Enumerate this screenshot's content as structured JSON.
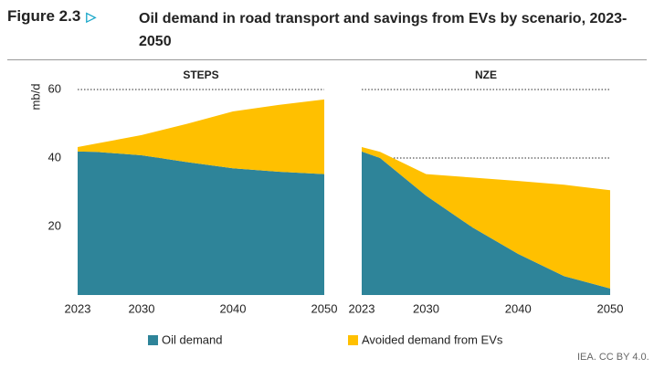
{
  "figure_label": "Figure 2.3",
  "title": "Oil demand in road transport and savings from EVs by scenario, 2023-2050",
  "source": "IEA. CC BY 4.0.",
  "chart_data": [
    {
      "type": "area",
      "stacked": true,
      "title": "STEPS",
      "y_label": "mb/d",
      "x": [
        2023,
        2025,
        2030,
        2035,
        2040,
        2045,
        2050
      ],
      "xlim": [
        2023,
        2050
      ],
      "xticks": [
        2023,
        2030,
        2040,
        2050
      ],
      "ylim": [
        0,
        60
      ],
      "yticks": [
        20,
        40,
        60
      ],
      "grid": true,
      "series": [
        {
          "name": "Oil demand",
          "color": "#2e8499",
          "values": [
            41.9,
            41.8,
            40.8,
            38.8,
            37.0,
            36.0,
            35.3
          ]
        },
        {
          "name": "Avoided demand from EVs",
          "color": "#ffc000",
          "values": [
            1.3,
            2.4,
            5.9,
            11.2,
            16.6,
            19.5,
            21.8
          ]
        }
      ]
    },
    {
      "type": "area",
      "stacked": true,
      "title": "NZE",
      "x": [
        2023,
        2025,
        2030,
        2035,
        2040,
        2045,
        2050
      ],
      "xlim": [
        2023,
        2050
      ],
      "xticks": [
        2023,
        2030,
        2040,
        2050
      ],
      "ylim": [
        0,
        60
      ],
      "yticks": [
        20,
        40,
        60
      ],
      "grid": true,
      "series": [
        {
          "color": "#2e8499",
          "values": [
            41.9,
            40.0,
            29.0,
            19.8,
            12.0,
            5.5,
            1.9
          ]
        },
        {
          "color": "#ffc000",
          "values": [
            1.3,
            1.8,
            6.3,
            14.5,
            21.3,
            26.7,
            28.7
          ]
        }
      ]
    }
  ]
}
